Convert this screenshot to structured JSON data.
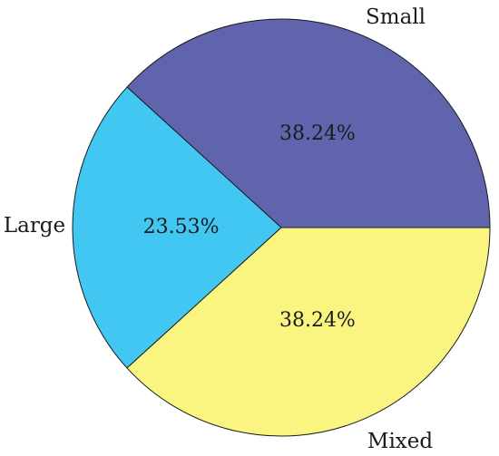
{
  "chart_data": {
    "type": "pie",
    "title": "",
    "slices": [
      {
        "label": "Small",
        "value": 38.24,
        "value_label": "38.24%",
        "color": "#6064AC"
      },
      {
        "label": "Mixed",
        "value": 38.24,
        "value_label": "38.24%",
        "color": "#FAF480"
      },
      {
        "label": "Large",
        "value": 23.53,
        "value_label": "23.53%",
        "color": "#42C7F2"
      }
    ],
    "start_angle_deg": 0,
    "direction": "counterclockwise-for-small-first",
    "legend": "none",
    "slice_border_color": "#1a1a1a"
  }
}
